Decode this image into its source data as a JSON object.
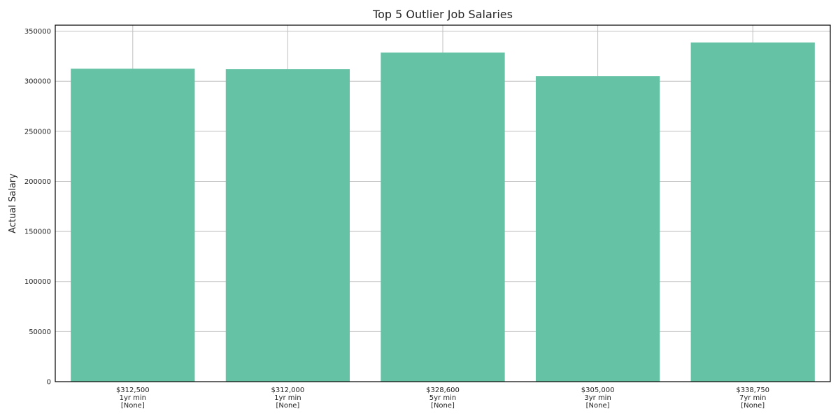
{
  "chart_data": {
    "type": "bar",
    "title": "Top 5 Outlier Job Salaries",
    "xlabel": "",
    "ylabel": "Actual Salary",
    "categories": [
      [
        "$312,500",
        "1yr min",
        "[None]"
      ],
      [
        "$312,000",
        "1yr min",
        "[None]"
      ],
      [
        "$328,600",
        "5yr min",
        "[None]"
      ],
      [
        "$305,000",
        "3yr min",
        "[None]"
      ],
      [
        "$338,750",
        "7yr min",
        "[None]"
      ]
    ],
    "values": [
      312500,
      312000,
      328600,
      305000,
      338750
    ],
    "ylim": [
      0,
      356000
    ],
    "yticks": [
      0,
      50000,
      100000,
      150000,
      200000,
      250000,
      300000,
      350000
    ],
    "grid": true,
    "bar_color": "#66c2a5",
    "grid_color": "#c0c0c0",
    "axis_color": "#000000"
  }
}
